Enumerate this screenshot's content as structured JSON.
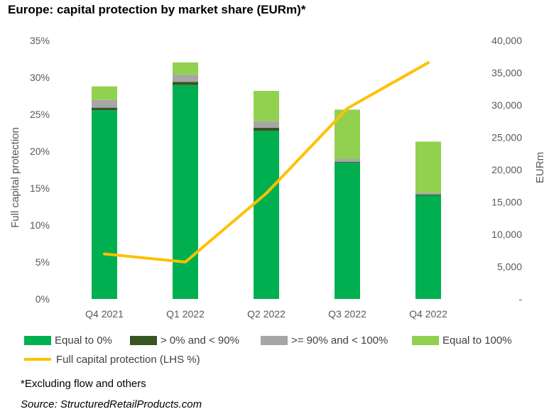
{
  "title": "Europe: capital protection by market share (EURm)*",
  "footnote": "*Excluding flow and others",
  "source": "Source: StructuredRetailProducts.com",
  "chart_data": {
    "type": "bar",
    "stacked": true,
    "title": "Europe: capital protection by market share (EURm)*",
    "categories": [
      "Q4 2021",
      "Q1 2022",
      "Q2 2022",
      "Q3 2022",
      "Q4 2022"
    ],
    "y_left": {
      "label": "Full capital protection",
      "range": [
        0,
        35
      ],
      "ticks": [
        0,
        5,
        10,
        15,
        20,
        25,
        30,
        35
      ],
      "tick_labels": [
        "0%",
        "5%",
        "10%",
        "15%",
        "20%",
        "25%",
        "30%",
        "35%"
      ]
    },
    "y_right": {
      "label": "EURm",
      "range": [
        0,
        40000
      ],
      "ticks": [
        0,
        5000,
        10000,
        15000,
        20000,
        25000,
        30000,
        35000,
        40000
      ],
      "tick_labels": [
        "-",
        "5,000",
        "10,000",
        "15,000",
        "20,000",
        "25,000",
        "30,000",
        "35,000",
        "40,000"
      ]
    },
    "series": [
      {
        "name": "Equal to 0%",
        "type": "bar",
        "axis": "right",
        "color": "#00b050",
        "values": [
          29200,
          33100,
          26000,
          21100,
          16000
        ]
      },
      {
        "name": "> 0% and < 90%",
        "type": "bar",
        "axis": "right",
        "color": "#375623",
        "values": [
          400,
          500,
          500,
          100,
          150
        ]
      },
      {
        "name": ">= 90% and < 100%",
        "type": "bar",
        "axis": "right",
        "color": "#a6a6a6",
        "values": [
          1200,
          1100,
          1000,
          500,
          300
        ]
      },
      {
        "name": "Equal to 100%",
        "type": "bar",
        "axis": "right",
        "color": "#92d050",
        "values": [
          2100,
          1900,
          4700,
          7600,
          7900
        ]
      },
      {
        "name": "Full capital protection (LHS %)",
        "type": "line",
        "axis": "left",
        "color": "#ffc000",
        "values": [
          6.1,
          5.0,
          14.3,
          25.8,
          32.0
        ]
      }
    ],
    "legend_position": "bottom",
    "grid": false
  }
}
